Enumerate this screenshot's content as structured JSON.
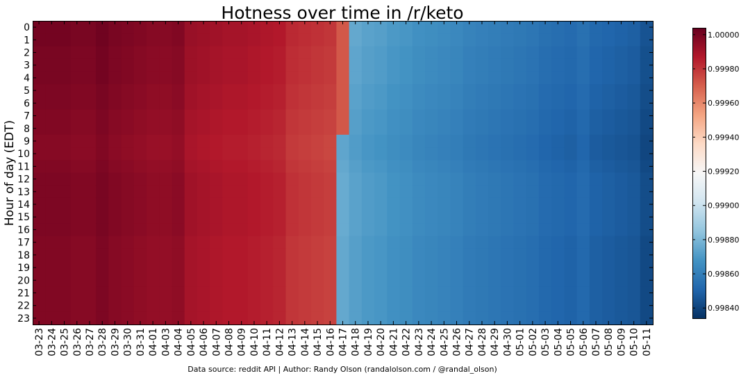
{
  "chart_data": {
    "type": "heatmap",
    "title": "Hotness over time in /r/keto",
    "xlabel": "",
    "ylabel": "Hour of day (EDT)",
    "x_categories": [
      "03-23",
      "03-24",
      "03-25",
      "03-26",
      "03-27",
      "03-28",
      "03-29",
      "03-30",
      "03-31",
      "04-01",
      "04-03",
      "04-04",
      "04-05",
      "04-06",
      "04-07",
      "04-08",
      "04-09",
      "04-10",
      "04-11",
      "04-12",
      "04-13",
      "04-14",
      "04-15",
      "04-16",
      "04-17",
      "04-18",
      "04-19",
      "04-20",
      "04-21",
      "04-22",
      "04-23",
      "04-24",
      "04-25",
      "04-26",
      "04-27",
      "04-28",
      "04-29",
      "04-30",
      "05-01",
      "05-02",
      "05-03",
      "05-04",
      "05-05",
      "05-06",
      "05-07",
      "05-08",
      "05-09",
      "05-10",
      "05-11"
    ],
    "y_categories": [
      "0",
      "1",
      "2",
      "3",
      "4",
      "5",
      "6",
      "7",
      "8",
      "9",
      "10",
      "11",
      "12",
      "13",
      "14",
      "15",
      "16",
      "17",
      "18",
      "19",
      "20",
      "21",
      "22",
      "23"
    ],
    "colormap": "RdBu_r",
    "color_range": [
      0.99834,
      1.00004
    ],
    "colorbar_ticks": [
      "0.99840",
      "0.99860",
      "0.99880",
      "0.99900",
      "0.99920",
      "0.99940",
      "0.99960",
      "0.99980",
      "1.00000"
    ],
    "footer": "Data source: reddit API | Author: Randy Olson (randalolson.com / @randal_olson)",
    "column_levels": [
      0.99998,
      0.99998,
      0.99998,
      0.99997,
      0.99997,
      0.99999,
      0.99997,
      0.99996,
      0.99995,
      0.99994,
      0.99994,
      0.99995,
      0.9999,
      0.99989,
      0.99988,
      0.99987,
      0.99987,
      0.99986,
      0.99985,
      0.99984,
      0.9998,
      0.99979,
      0.99978,
      0.99977,
      0.99875,
      0.99872,
      0.9987,
      0.99869,
      0.99867,
      0.99866,
      0.99864,
      0.99863,
      0.99862,
      0.99861,
      0.99859,
      0.99858,
      0.99857,
      0.99856,
      0.99855,
      0.99854,
      0.99852,
      0.99851,
      0.9985,
      0.99852,
      0.99849,
      0.99848,
      0.99847,
      0.99846,
      0.99842
    ],
    "hour_offsets": [
      3e-05,
      3e-05,
      2e-05,
      2e-05,
      2e-05,
      1e-05,
      1e-05,
      0.0,
      0.0,
      -1e-05,
      -1e-05,
      0.0,
      1e-05,
      1e-05,
      1e-05,
      1e-05,
      1e-05,
      0.0,
      0.0,
      0.0,
      0.0,
      0.0,
      0.0,
      0.0
    ]
  }
}
